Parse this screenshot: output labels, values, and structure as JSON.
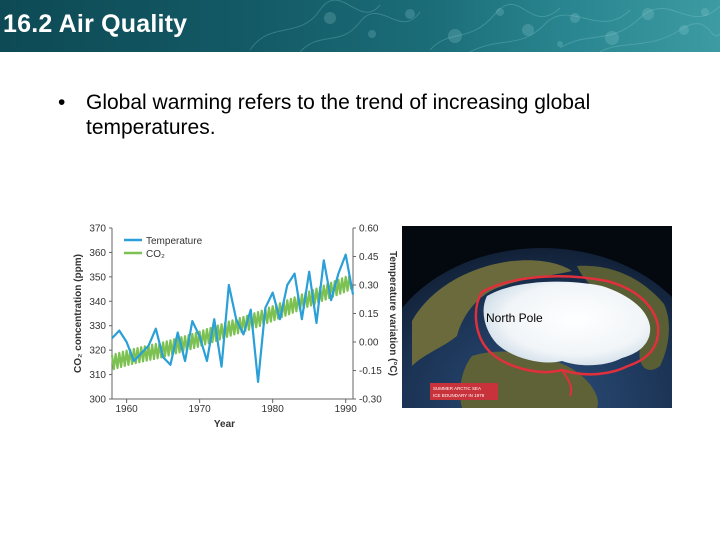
{
  "header": {
    "title": "16.2 Air Quality"
  },
  "bullet": {
    "glyph": "•",
    "text": "Global warming refers to the trend of increasing global temperatures."
  },
  "chart_data": {
    "type": "line",
    "xlabel": "Year",
    "ylabel_left": "CO₂ concentration (ppm)",
    "ylabel_right": "Temperature variation (°C)",
    "xlim": [
      1958,
      1991
    ],
    "ylim_left": [
      300,
      370
    ],
    "ylim_right": [
      -0.3,
      0.6
    ],
    "x_ticks": [
      "1960",
      "1970",
      "1980",
      "1990"
    ],
    "y_ticks_left": [
      "370",
      "360",
      "350",
      "340",
      "330",
      "320",
      "310",
      "300"
    ],
    "y_ticks_right": [
      "0.60",
      "0.45",
      "0.30",
      "0.15",
      "0.00",
      "-0.15",
      "-0.30"
    ],
    "legend_position": "top-left",
    "series": [
      {
        "name": "Temperature",
        "axis": "right",
        "color": "#2a9fd8",
        "x": [
          1958,
          1959,
          1960,
          1961,
          1962,
          1963,
          1964,
          1965,
          1966,
          1967,
          1968,
          1969,
          1970,
          1971,
          1972,
          1973,
          1974,
          1975,
          1976,
          1977,
          1978,
          1979,
          1980,
          1981,
          1982,
          1983,
          1984,
          1985,
          1986,
          1987,
          1988,
          1989,
          1990,
          1991
        ],
        "y": [
          0.02,
          0.06,
          0.0,
          -0.1,
          -0.06,
          -0.02,
          0.07,
          -0.08,
          -0.12,
          0.05,
          -0.1,
          0.11,
          0.03,
          -0.1,
          0.12,
          -0.13,
          0.3,
          0.12,
          0.04,
          0.17,
          -0.21,
          0.18,
          0.26,
          0.12,
          0.3,
          0.36,
          0.12,
          0.37,
          0.1,
          0.43,
          0.22,
          0.36,
          0.46,
          0.25
        ]
      },
      {
        "name": "CO₂",
        "axis": "left",
        "color": "#7cc152",
        "x": [
          1958,
          1959,
          1960,
          1961,
          1962,
          1963,
          1964,
          1965,
          1966,
          1967,
          1968,
          1969,
          1970,
          1971,
          1972,
          1973,
          1974,
          1975,
          1976,
          1977,
          1978,
          1979,
          1980,
          1981,
          1982,
          1983,
          1984,
          1985,
          1986,
          1987,
          1988,
          1989,
          1990,
          1991
        ],
        "y": [
          315.0,
          315.9,
          316.8,
          317.5,
          318.2,
          318.9,
          319.5,
          320.2,
          321.0,
          321.9,
          322.7,
          323.6,
          324.6,
          325.6,
          326.5,
          327.6,
          328.7,
          329.7,
          330.6,
          331.6,
          332.6,
          333.8,
          335.0,
          336.2,
          337.4,
          338.6,
          339.8,
          341.0,
          342.2,
          343.4,
          344.6,
          345.8,
          347.0,
          348.2
        ],
        "seasonal_amplitude_ppm": 3
      }
    ]
  },
  "photo": {
    "label": "North Pole",
    "inset_legend": [
      "SUMMER ARCTIC SEA",
      "ICE BOUNDARY IN 1979"
    ]
  }
}
